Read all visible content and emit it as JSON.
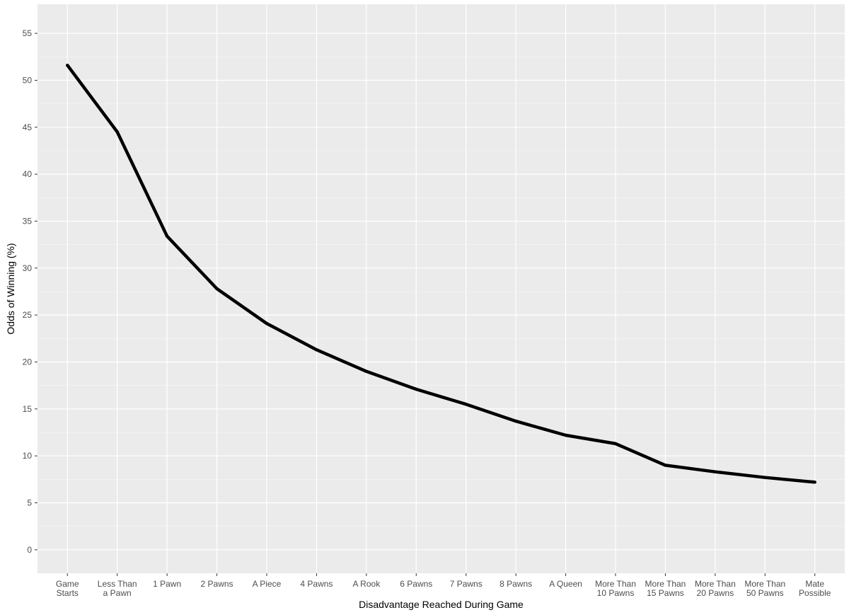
{
  "chart_data": {
    "type": "line",
    "title": "",
    "xlabel": "Disadvantage Reached During Game",
    "ylabel": "Odds of Winning (%)",
    "categories": [
      [
        "Game",
        "Starts"
      ],
      [
        "Less Than",
        "a Pawn"
      ],
      [
        "1 Pawn"
      ],
      [
        "2 Pawns"
      ],
      [
        "A Piece"
      ],
      [
        "4 Pawns"
      ],
      [
        "A Rook"
      ],
      [
        "6 Pawns"
      ],
      [
        "7 Pawns"
      ],
      [
        "8 Pawns"
      ],
      [
        "A Queen"
      ],
      [
        "More Than",
        "10 Pawns"
      ],
      [
        "More Than",
        "15 Pawns"
      ],
      [
        "More Than",
        "20 Pawns"
      ],
      [
        "More Than",
        "50 Pawns"
      ],
      [
        "Mate",
        "Possible"
      ]
    ],
    "values": [
      51.6,
      44.5,
      33.4,
      27.8,
      24.1,
      21.3,
      19.0,
      17.1,
      15.5,
      13.7,
      12.2,
      11.3,
      9.0,
      8.3,
      7.7,
      7.2
    ],
    "ylim": [
      -2.5,
      58.1
    ],
    "yticks": [
      0,
      5,
      10,
      15,
      20,
      25,
      30,
      35,
      40,
      45,
      50,
      55
    ],
    "grid": true,
    "legend": "none",
    "colors": {
      "panel_background": "#ebebeb",
      "major_grid": "#ffffff",
      "minor_grid": "#f5f5f5",
      "line": "#000000",
      "tick_text": "#4d4d4d",
      "tick_mark": "#333333"
    }
  }
}
